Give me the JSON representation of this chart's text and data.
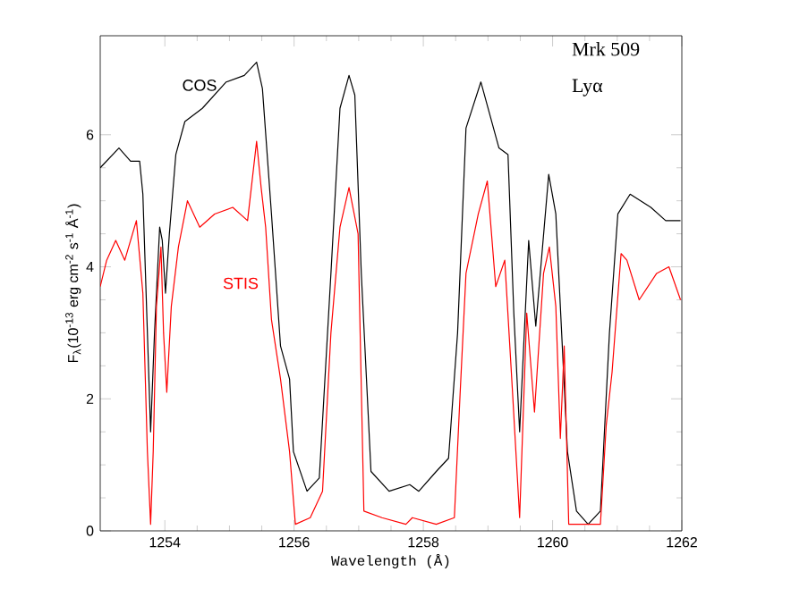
{
  "chart_data": {
    "type": "line",
    "xlabel": "Wavelength (Å)",
    "ylabel": "F$_{λ}$(10$^{-13}$ erg cm$^{-2}$ s$^{-1}$ Å$^{-1}$)",
    "annotations": [
      "Mrk 509",
      "Lyα"
    ],
    "xlim": [
      1253,
      1262
    ],
    "xticks": [
      1254,
      1256,
      1258,
      1260,
      1262
    ],
    "ylim": [
      0,
      7.5
    ],
    "yticks": [
      0,
      2,
      4,
      6
    ],
    "grid": false,
    "legend": false,
    "marker": "none",
    "line_style": "solid",
    "series": [
      {
        "name": "COS",
        "color": "#000000",
        "x": [
          1253.0,
          1253.29,
          1253.47,
          1253.61,
          1253.66,
          1253.7,
          1253.78,
          1253.84,
          1253.92,
          1253.96,
          1254.01,
          1254.07,
          1254.17,
          1254.31,
          1254.58,
          1254.95,
          1255.23,
          1255.42,
          1255.51,
          1255.65,
          1255.79,
          1255.93,
          1255.99,
          1256.2,
          1256.39,
          1256.57,
          1256.71,
          1256.85,
          1256.94,
          1257.04,
          1257.19,
          1257.47,
          1257.79,
          1257.93,
          1258.2,
          1258.39,
          1258.53,
          1258.66,
          1258.89,
          1259.03,
          1259.17,
          1259.31,
          1259.4,
          1259.49,
          1259.63,
          1259.74,
          1259.94,
          1260.05,
          1260.14,
          1260.23,
          1260.37,
          1260.55,
          1260.74,
          1260.88,
          1261.01,
          1261.2,
          1261.52,
          1261.75,
          1261.98
        ],
        "values": [
          5.5,
          5.8,
          5.6,
          5.6,
          5.1,
          3.9,
          1.5,
          3.0,
          4.6,
          4.4,
          3.6,
          4.5,
          5.7,
          6.2,
          6.4,
          6.8,
          6.9,
          7.1,
          6.7,
          4.8,
          2.8,
          2.3,
          1.2,
          0.6,
          0.8,
          3.9,
          6.4,
          6.9,
          6.6,
          3.9,
          0.9,
          0.6,
          0.7,
          0.6,
          0.9,
          1.1,
          3.0,
          6.1,
          6.8,
          6.3,
          5.8,
          5.7,
          3.3,
          1.5,
          4.4,
          3.1,
          5.4,
          4.8,
          3.0,
          1.2,
          0.3,
          0.1,
          0.3,
          3.0,
          4.8,
          5.1,
          4.9,
          4.7,
          4.7
        ]
      },
      {
        "name": "STIS",
        "color": "#ff0000",
        "x": [
          1253.0,
          1253.1,
          1253.24,
          1253.38,
          1253.56,
          1253.66,
          1253.73,
          1253.78,
          1253.82,
          1253.87,
          1253.94,
          1253.98,
          1254.03,
          1254.1,
          1254.21,
          1254.35,
          1254.54,
          1254.77,
          1255.05,
          1255.28,
          1255.42,
          1255.49,
          1255.56,
          1255.65,
          1255.79,
          1255.93,
          1256.02,
          1256.25,
          1256.44,
          1256.57,
          1256.71,
          1256.85,
          1256.99,
          1257.08,
          1257.36,
          1257.73,
          1257.83,
          1258.2,
          1258.48,
          1258.57,
          1258.66,
          1258.85,
          1258.99,
          1259.12,
          1259.26,
          1259.38,
          1259.49,
          1259.6,
          1259.72,
          1259.86,
          1259.95,
          1260.05,
          1260.12,
          1260.18,
          1260.25,
          1260.51,
          1260.74,
          1260.83,
          1260.92,
          1261.06,
          1261.15,
          1261.34,
          1261.61,
          1261.8,
          1261.98
        ],
        "values": [
          3.7,
          4.1,
          4.4,
          4.1,
          4.7,
          3.6,
          1.2,
          0.1,
          1.2,
          3.4,
          4.3,
          3.0,
          2.1,
          3.4,
          4.3,
          5.0,
          4.6,
          4.8,
          4.9,
          4.7,
          5.9,
          5.2,
          4.6,
          3.2,
          2.3,
          1.2,
          0.1,
          0.2,
          0.6,
          3.0,
          4.6,
          5.2,
          4.5,
          0.3,
          0.2,
          0.1,
          0.2,
          0.1,
          0.2,
          2.1,
          3.9,
          4.8,
          5.3,
          3.7,
          4.1,
          2.1,
          0.2,
          3.3,
          1.8,
          3.9,
          4.3,
          3.4,
          1.4,
          2.8,
          0.1,
          0.1,
          0.1,
          1.6,
          2.4,
          4.2,
          4.1,
          3.5,
          3.9,
          4.0,
          3.5
        ]
      }
    ]
  }
}
